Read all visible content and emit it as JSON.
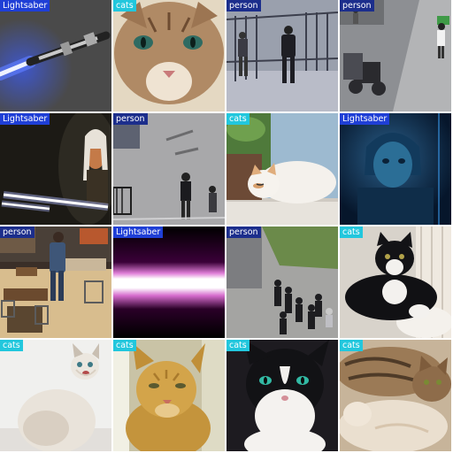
{
  "grid": {
    "rows": 4,
    "cols": 4,
    "label_colors": {
      "Lightsaber": "#1f3fd6",
      "cats": "#22c7dd",
      "person": "#1c2e8c"
    },
    "tiles": [
      {
        "label": "Lightsaber",
        "scene": "lightsaber-blue"
      },
      {
        "label": "cats",
        "scene": "cat-closeup"
      },
      {
        "label": "person",
        "scene": "person-gate"
      },
      {
        "label": "person",
        "scene": "street-scooters"
      },
      {
        "label": "Lightsaber",
        "scene": "ahsoka-sabers"
      },
      {
        "label": "person",
        "scene": "person-street-top"
      },
      {
        "label": "cats",
        "scene": "cat-lying"
      },
      {
        "label": "Lightsaber",
        "scene": "blue-figure"
      },
      {
        "label": "person",
        "scene": "restaurant"
      },
      {
        "label": "Lightsaber",
        "scene": "pink-beam"
      },
      {
        "label": "person",
        "scene": "crowd-top"
      },
      {
        "label": "cats",
        "scene": "cat-tuxedo-lying"
      },
      {
        "label": "cats",
        "scene": "cat-white-fluffy"
      },
      {
        "label": "cats",
        "scene": "cat-orange"
      },
      {
        "label": "cats",
        "scene": "cat-tuxedo-face"
      },
      {
        "label": "cats",
        "scene": "cat-pile"
      }
    ]
  }
}
